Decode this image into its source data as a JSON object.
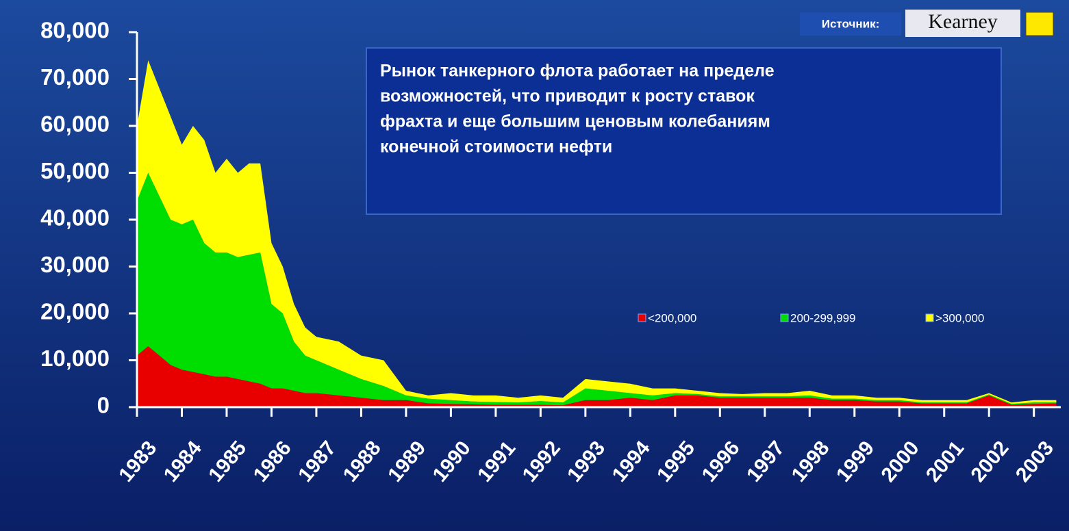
{
  "chart_data": {
    "type": "stacked-area",
    "annotation": [
      "Рынок танкерного флота работает на пределе",
      "возможностей, что приводит к росту ставок",
      "фрахта и еще большим ценовым колебаниям",
      "конечной стоимости нефти"
    ],
    "source_label": "Источник:",
    "source": "Kearney",
    "x": [
      1983,
      1983.25,
      1983.5,
      1983.75,
      1984,
      1984.25,
      1984.5,
      1984.75,
      1985,
      1985.25,
      1985.5,
      1985.75,
      1986,
      1986.25,
      1986.5,
      1986.75,
      1987,
      1987.5,
      1988,
      1988.5,
      1989,
      1989.5,
      1990,
      1990.5,
      1991,
      1991.5,
      1992,
      1992.5,
      1993,
      1993.5,
      1994,
      1994.5,
      1995,
      1995.5,
      1996,
      1996.5,
      1997,
      1997.5,
      1998,
      1998.5,
      1999,
      1999.5,
      2000,
      2000.5,
      2001,
      2001.5,
      2002,
      2002.5,
      2003,
      2003.5
    ],
    "series": [
      {
        "name": "<200,000",
        "color": "#e80000",
        "values": [
          11000,
          13000,
          11000,
          9000,
          8000,
          7500,
          7000,
          6500,
          6500,
          6000,
          5500,
          5000,
          4000,
          4000,
          3500,
          3000,
          3000,
          2500,
          2000,
          1500,
          1500,
          800,
          700,
          600,
          500,
          500,
          500,
          400,
          1500,
          1500,
          2000,
          1500,
          2500,
          2500,
          2000,
          2000,
          2000,
          2000,
          2000,
          1500,
          1500,
          1200,
          1200,
          800,
          800,
          800,
          2500,
          500,
          700,
          800
        ]
      },
      {
        "name": "200-299,999",
        "color": "#00dd00",
        "values": [
          33000,
          37000,
          34000,
          31000,
          31000,
          32500,
          28000,
          26500,
          26500,
          26000,
          27000,
          28000,
          18000,
          16000,
          10500,
          8000,
          7000,
          5500,
          4000,
          3000,
          1000,
          1000,
          800,
          600,
          600,
          500,
          800,
          600,
          2500,
          2000,
          1000,
          1000,
          500,
          300,
          300,
          300,
          300,
          300,
          500,
          300,
          300,
          300,
          300,
          200,
          200,
          200,
          200,
          200,
          300,
          200
        ]
      },
      {
        "name": ">300,000",
        "color": "#ffff00",
        "values": [
          16000,
          24000,
          23000,
          22000,
          17000,
          20000,
          22000,
          17000,
          20000,
          18000,
          19500,
          19000,
          13000,
          10000,
          8000,
          6000,
          5000,
          6000,
          5000,
          5500,
          1000,
          700,
          1500,
          1300,
          1400,
          1000,
          1200,
          1000,
          2000,
          2000,
          2000,
          1500,
          1000,
          700,
          700,
          500,
          700,
          700,
          1000,
          700,
          700,
          500,
          500,
          500,
          500,
          500,
          300,
          300,
          500,
          500
        ]
      }
    ],
    "xlim": [
      1983,
      2003.6
    ],
    "xticks": [
      1983,
      1984,
      1985,
      1986,
      1987,
      1988,
      1989,
      1990,
      1991,
      1992,
      1993,
      1994,
      1995,
      1996,
      1997,
      1998,
      1999,
      2000,
      2001,
      2002,
      2003
    ],
    "ylim": [
      0,
      80000
    ],
    "yticks": [
      0,
      {
        "value": 10000,
        "label": "10,000"
      },
      {
        "value": 20000,
        "label": "20,000"
      },
      {
        "value": 30000,
        "label": "30,000"
      },
      {
        "value": 40000,
        "label": "40,000"
      },
      {
        "value": 50000,
        "label": "50,000"
      },
      {
        "value": 60000,
        "label": "60,000"
      },
      {
        "value": 70000,
        "label": "70,000"
      },
      {
        "value": 80000,
        "label": "80,000"
      }
    ],
    "legend": "right"
  }
}
